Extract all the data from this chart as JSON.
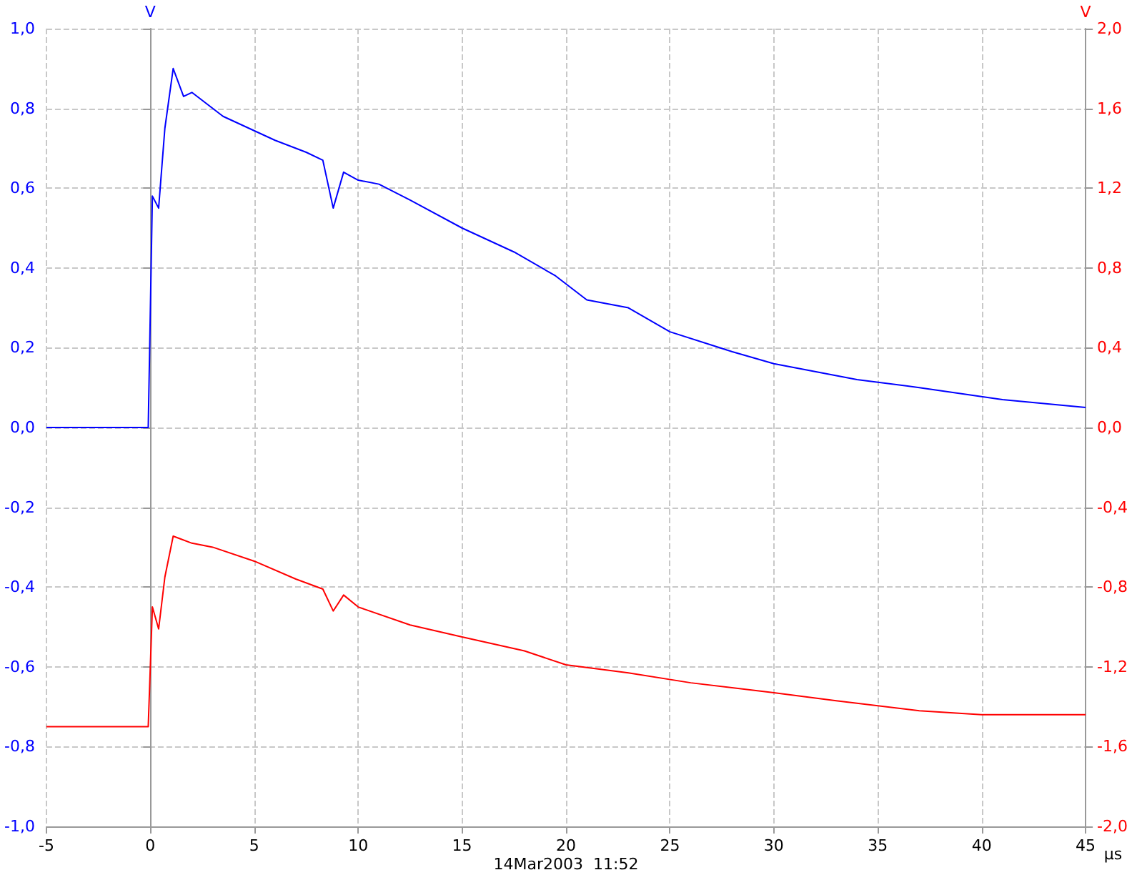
{
  "chart_data": {
    "type": "line",
    "xlabel": "µs",
    "ylabel": "V",
    "y2label": "V",
    "annotations": [
      "14Mar2003  11:52"
    ],
    "xlim": [
      -5,
      45
    ],
    "xticks": [
      -5,
      0,
      5,
      10,
      15,
      20,
      25,
      30,
      35,
      40,
      45
    ],
    "ylim": [
      -1,
      1
    ],
    "yticks": [
      {
        "value": -1,
        "label": "-1,0"
      },
      {
        "value": -0.8,
        "label": "-0,8"
      },
      {
        "value": -0.6,
        "label": "-0,6"
      },
      {
        "value": -0.4,
        "label": "-0,4"
      },
      {
        "value": -0.2,
        "label": "-0,2"
      },
      {
        "value": 0,
        "label": "0,0"
      },
      {
        "value": 0.2,
        "label": "0,2"
      },
      {
        "value": 0.4,
        "label": "0,4"
      },
      {
        "value": 0.6,
        "label": "0,6"
      },
      {
        "value": 0.8,
        "label": "0,8"
      },
      {
        "value": 1,
        "label": "1,0"
      }
    ],
    "y2lim": [
      -2,
      2
    ],
    "y2ticks": [
      {
        "value": -2,
        "label": "-2,0"
      },
      {
        "value": -1.6,
        "label": "-1,6"
      },
      {
        "value": -1.2,
        "label": "-1,2"
      },
      {
        "value": -0.8,
        "label": "-0,8"
      },
      {
        "value": -0.4,
        "label": "-0,4"
      },
      {
        "value": 0,
        "label": "0,0"
      },
      {
        "value": 0.4,
        "label": "0,4"
      },
      {
        "value": 0.8,
        "label": "0,8"
      },
      {
        "value": 1.2,
        "label": "1,2"
      },
      {
        "value": 1.6,
        "label": "1,6"
      },
      {
        "value": 2,
        "label": "2,0"
      }
    ],
    "grid": true,
    "line_style": "solid",
    "series": [
      {
        "color": "#0000ff",
        "x": [
          -5,
          -2,
          -0.1,
          0.1,
          0.4,
          0.7,
          1.1,
          1.6,
          2,
          3.5,
          6,
          7.5,
          8.3,
          8.8,
          9.3,
          10,
          11,
          12.5,
          15,
          17.5,
          19.5,
          21,
          23,
          25,
          28,
          30,
          34,
          37,
          41,
          45
        ],
        "values": [
          0,
          0,
          0,
          0.58,
          0.55,
          0.75,
          0.9,
          0.83,
          0.84,
          0.78,
          0.72,
          0.69,
          0.67,
          0.55,
          0.64,
          0.62,
          0.61,
          0.57,
          0.5,
          0.44,
          0.38,
          0.32,
          0.3,
          0.24,
          0.19,
          0.16,
          0.12,
          0.1,
          0.07,
          0.05
        ]
      },
      {
        "color": "#ff0000",
        "axis": "y2",
        "x": [
          -5,
          -2,
          -0.1,
          0.1,
          0.4,
          0.7,
          1.1,
          2,
          3,
          5,
          7,
          8.3,
          8.8,
          9.3,
          10,
          12.5,
          15,
          18,
          20,
          23,
          26,
          30,
          33,
          37,
          40,
          45
        ],
        "values": [
          -1.5,
          -1.5,
          -1.5,
          -0.9,
          -1.01,
          -0.75,
          -0.545,
          -0.58,
          -0.6,
          -0.67,
          -0.76,
          -0.81,
          -0.92,
          -0.84,
          -0.9,
          -0.99,
          -1.05,
          -1.12,
          -1.19,
          -1.23,
          -1.28,
          -1.33,
          -1.37,
          -1.42,
          -1.44,
          -1.44
        ]
      }
    ]
  }
}
